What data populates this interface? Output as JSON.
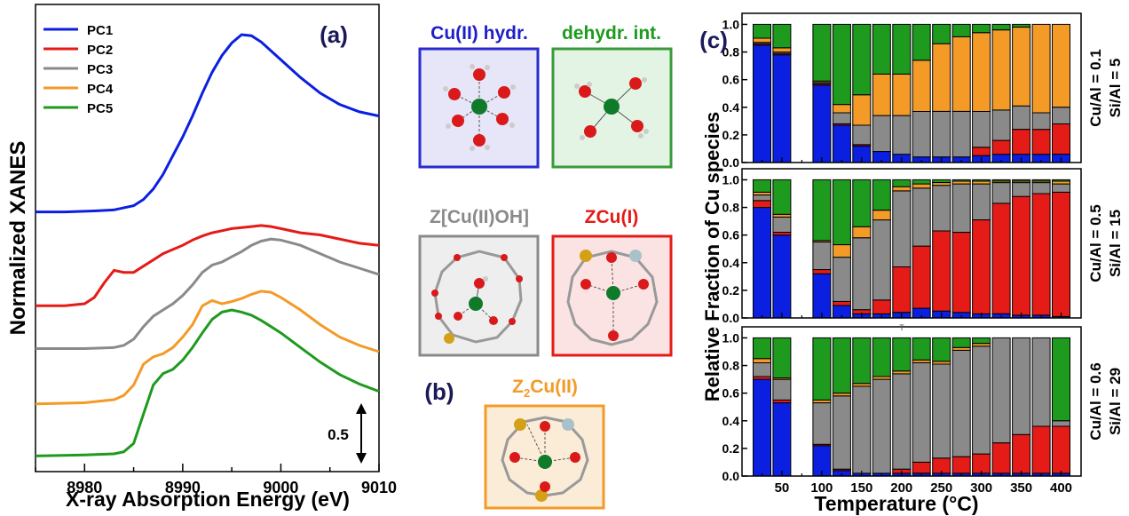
{
  "panel_a": {
    "label": "(a)",
    "ylabel": "Normalized XANES",
    "xlabel": "X-ray Absorption Energy (eV)",
    "scale_bar_label": "0.5",
    "legend": [
      "PC1",
      "PC2",
      "PC3",
      "PC4",
      "PC5"
    ]
  },
  "panel_b": {
    "label": "(b)",
    "boxes": [
      {
        "title": "Cu(II) hydr."
      },
      {
        "title": "dehydr. int."
      },
      {
        "title": "Z[Cu(II)OH]"
      },
      {
        "title": "ZCu(I)"
      },
      {
        "title_main": "Z",
        "title_sub": "2",
        "title_rest": "Cu(II)"
      }
    ]
  },
  "panel_c": {
    "label": "(c)",
    "ylabel": "Relative Fraction of Cu species",
    "xlabel": "Temperature (°C)",
    "stray_mark": "T",
    "rows": [
      {
        "line1": "Cu/Al = 0.1",
        "line2": "Si/Al = 5"
      },
      {
        "line1": "Cu/Al = 0.5",
        "line2": "Si/Al = 15"
      },
      {
        "line1": "Cu/Al = 0.6",
        "line2": "Si/Al = 29"
      }
    ]
  },
  "colors": {
    "PC1": "#0a1fe0",
    "PC2": "#e41b17",
    "PC3": "#8a8a8a",
    "PC4": "#f39a27",
    "PC5": "#1e9a1e",
    "title_cu_hydr": "#1f1fc8",
    "title_dehydr": "#1e9a1e",
    "title_cuoh": "#8a8a8a",
    "title_cui": "#e41b17",
    "title_z2": "#f39a27"
  },
  "chart_data": [
    {
      "type": "line",
      "title": "",
      "xlabel": "X-ray Absorption Energy (eV)",
      "ylabel": "Normalized XANES",
      "xlim": [
        8975,
        9010
      ],
      "xticks": [
        8980,
        8990,
        9000,
        9010
      ],
      "yticks": [],
      "legend_position": "top-left",
      "grid": false,
      "series": [
        {
          "name": "PC1",
          "color": "#0a1fe0",
          "x": [
            8975,
            8978,
            8981,
            8983,
            8985,
            8986,
            8987,
            8988,
            8989,
            8990,
            8991,
            8992,
            8993,
            8994,
            8995,
            8996,
            8997,
            8998,
            9000,
            9002,
            9004,
            9006,
            9008,
            9010
          ],
          "y": [
            3.26,
            3.26,
            3.27,
            3.28,
            3.32,
            3.38,
            3.48,
            3.62,
            3.8,
            3.98,
            4.18,
            4.4,
            4.6,
            4.76,
            4.88,
            4.96,
            4.95,
            4.89,
            4.72,
            4.55,
            4.4,
            4.29,
            4.22,
            4.18
          ]
        },
        {
          "name": "PC2",
          "color": "#e41b17",
          "x": [
            8975,
            8978,
            8980,
            8981,
            8982,
            8983,
            8984,
            8985,
            8986,
            8987,
            8988,
            8989,
            8990,
            8991,
            8992,
            8993,
            8994,
            8995,
            8996,
            8997,
            8998,
            8999,
            9000,
            9002,
            9004,
            9006,
            9008,
            9010
          ],
          "y": [
            2.36,
            2.36,
            2.38,
            2.44,
            2.58,
            2.7,
            2.68,
            2.68,
            2.74,
            2.8,
            2.86,
            2.9,
            2.94,
            2.99,
            3.03,
            3.06,
            3.08,
            3.1,
            3.11,
            3.12,
            3.13,
            3.12,
            3.1,
            3.06,
            3.04,
            3.0,
            2.96,
            2.94
          ]
        },
        {
          "name": "PC3",
          "color": "#8a8a8a",
          "x": [
            8975,
            8980,
            8983,
            8984,
            8985,
            8986,
            8987,
            8988,
            8989,
            8990,
            8991,
            8992,
            8993,
            8994,
            8995,
            8996,
            8997,
            8998,
            8999,
            9000,
            9002,
            9004,
            9006,
            9008,
            9010
          ],
          "y": [
            1.95,
            1.95,
            1.96,
            1.98,
            2.04,
            2.16,
            2.26,
            2.32,
            2.38,
            2.46,
            2.56,
            2.68,
            2.75,
            2.78,
            2.83,
            2.88,
            2.94,
            2.98,
            3.0,
            2.99,
            2.94,
            2.86,
            2.78,
            2.72,
            2.66
          ]
        },
        {
          "name": "PC4",
          "color": "#f39a27",
          "x": [
            8975,
            8980,
            8983,
            8984,
            8985,
            8986,
            8987,
            8988,
            8989,
            8990,
            8991,
            8992,
            8993,
            8994,
            8995,
            8996,
            8997,
            8998,
            8999,
            9000,
            9002,
            9004,
            9006,
            9008,
            9010
          ],
          "y": [
            1.42,
            1.43,
            1.46,
            1.5,
            1.6,
            1.8,
            1.87,
            1.9,
            1.96,
            2.06,
            2.18,
            2.36,
            2.41,
            2.38,
            2.4,
            2.43,
            2.47,
            2.5,
            2.49,
            2.44,
            2.32,
            2.18,
            2.06,
            1.98,
            1.92
          ]
        },
        {
          "name": "PC5",
          "color": "#1e9a1e",
          "x": [
            8975,
            8980,
            8983,
            8984,
            8985,
            8986,
            8987,
            8988,
            8989,
            8990,
            8991,
            8992,
            8993,
            8994,
            8995,
            8996,
            8997,
            8998,
            8999,
            9000,
            9002,
            9004,
            9006,
            9008,
            9010
          ],
          "y": [
            0.92,
            0.93,
            0.94,
            0.96,
            1.04,
            1.32,
            1.6,
            1.71,
            1.75,
            1.84,
            1.96,
            2.1,
            2.23,
            2.3,
            2.32,
            2.3,
            2.27,
            2.22,
            2.16,
            2.1,
            1.96,
            1.82,
            1.7,
            1.61,
            1.54
          ]
        }
      ]
    },
    {
      "type": "bar",
      "title": "",
      "subtitle": "Cu/Al = 0.1, Si/Al = 5",
      "xlabel": "Temperature (°C)",
      "ylabel": "Relative Fraction of Cu species",
      "ylim": [
        0,
        1.0
      ],
      "yticks": [
        "0.0",
        "0.2",
        "0.4",
        "0.6",
        "0.8",
        "1.0"
      ],
      "xticks": [
        50,
        100,
        150,
        200,
        250,
        300,
        350,
        400
      ],
      "stacked": true,
      "x": [
        25,
        50,
        100,
        125,
        150,
        175,
        200,
        225,
        250,
        275,
        300,
        325,
        350,
        375,
        400
      ],
      "series": [
        {
          "name": "PC1",
          "color": "#0a1fe0",
          "values": [
            0.85,
            0.78,
            0.56,
            0.27,
            0.12,
            0.08,
            0.06,
            0.04,
            0.04,
            0.04,
            0.05,
            0.06,
            0.06,
            0.06,
            0.06
          ]
        },
        {
          "name": "PC2",
          "color": "#e41b17",
          "values": [
            0.01,
            0.01,
            0.01,
            0.01,
            0.01,
            0.0,
            0.0,
            0.0,
            0.0,
            0.0,
            0.06,
            0.1,
            0.18,
            0.18,
            0.22
          ]
        },
        {
          "name": "PC3",
          "color": "#8a8a8a",
          "values": [
            0.01,
            0.01,
            0.01,
            0.08,
            0.14,
            0.26,
            0.28,
            0.33,
            0.33,
            0.33,
            0.26,
            0.22,
            0.17,
            0.12,
            0.12
          ]
        },
        {
          "name": "PC4",
          "color": "#f39a27",
          "values": [
            0.03,
            0.03,
            0.01,
            0.06,
            0.22,
            0.3,
            0.3,
            0.37,
            0.49,
            0.54,
            0.57,
            0.58,
            0.57,
            0.64,
            0.6
          ]
        },
        {
          "name": "PC5",
          "color": "#1e9a1e",
          "values": [
            0.1,
            0.17,
            0.41,
            0.58,
            0.51,
            0.36,
            0.36,
            0.26,
            0.14,
            0.09,
            0.06,
            0.04,
            0.02,
            0.0,
            0.0
          ]
        }
      ]
    },
    {
      "type": "bar",
      "title": "",
      "subtitle": "Cu/Al = 0.5, Si/Al = 15",
      "xlabel": "Temperature (°C)",
      "ylabel": "Relative Fraction of Cu species",
      "ylim": [
        0,
        1.0
      ],
      "yticks": [
        "0.0",
        "0.2",
        "0.4",
        "0.6",
        "0.8",
        "1.0"
      ],
      "xticks": [
        50,
        100,
        150,
        200,
        250,
        300,
        350,
        400
      ],
      "stacked": true,
      "x": [
        25,
        50,
        100,
        125,
        150,
        175,
        200,
        225,
        250,
        275,
        300,
        325,
        350,
        375,
        400
      ],
      "series": [
        {
          "name": "PC1",
          "color": "#0a1fe0",
          "values": [
            0.8,
            0.6,
            0.32,
            0.09,
            0.03,
            0.03,
            0.04,
            0.07,
            0.05,
            0.04,
            0.03,
            0.03,
            0.02,
            0.02,
            0.01
          ]
        },
        {
          "name": "PC2",
          "color": "#e41b17",
          "values": [
            0.05,
            0.02,
            0.03,
            0.03,
            0.03,
            0.1,
            0.33,
            0.45,
            0.58,
            0.58,
            0.68,
            0.8,
            0.86,
            0.88,
            0.9
          ]
        },
        {
          "name": "PC3",
          "color": "#8a8a8a",
          "values": [
            0.04,
            0.11,
            0.2,
            0.32,
            0.52,
            0.58,
            0.55,
            0.42,
            0.33,
            0.35,
            0.26,
            0.15,
            0.1,
            0.08,
            0.06
          ]
        },
        {
          "name": "PC4",
          "color": "#f39a27",
          "values": [
            0.02,
            0.02,
            0.01,
            0.09,
            0.08,
            0.07,
            0.03,
            0.03,
            0.02,
            0.02,
            0.02,
            0.01,
            0.01,
            0.01,
            0.02
          ]
        },
        {
          "name": "PC5",
          "color": "#1e9a1e",
          "values": [
            0.09,
            0.25,
            0.44,
            0.47,
            0.34,
            0.22,
            0.05,
            0.03,
            0.02,
            0.01,
            0.01,
            0.01,
            0.01,
            0.01,
            0.01
          ]
        }
      ]
    },
    {
      "type": "bar",
      "title": "",
      "subtitle": "Cu/Al = 0.6, Si/Al = 29",
      "xlabel": "Temperature (°C)",
      "ylabel": "Relative Fraction of Cu species",
      "ylim": [
        0,
        1.0
      ],
      "yticks": [
        "0.0",
        "0.2",
        "0.4",
        "0.6",
        "0.8",
        "1.0"
      ],
      "xticks": [
        50,
        100,
        150,
        200,
        250,
        300,
        350,
        400
      ],
      "stacked": true,
      "x": [
        25,
        50,
        100,
        125,
        150,
        175,
        200,
        225,
        250,
        275,
        300,
        325,
        350,
        375,
        400
      ],
      "series": [
        {
          "name": "PC1",
          "color": "#0a1fe0",
          "values": [
            0.7,
            0.53,
            0.22,
            0.04,
            0.02,
            0.02,
            0.02,
            0.02,
            0.02,
            0.02,
            0.02,
            0.02,
            0.02,
            0.02,
            0.02
          ]
        },
        {
          "name": "PC2",
          "color": "#e41b17",
          "values": [
            0.02,
            0.02,
            0.01,
            0.01,
            0.0,
            0.0,
            0.03,
            0.08,
            0.11,
            0.12,
            0.14,
            0.22,
            0.28,
            0.34,
            0.34
          ]
        },
        {
          "name": "PC3",
          "color": "#8a8a8a",
          "values": [
            0.1,
            0.15,
            0.3,
            0.53,
            0.63,
            0.68,
            0.69,
            0.72,
            0.68,
            0.77,
            0.78,
            0.76,
            0.7,
            0.64,
            0.04
          ]
        },
        {
          "name": "PC4",
          "color": "#f39a27",
          "values": [
            0.03,
            0.01,
            0.02,
            0.02,
            0.02,
            0.02,
            0.02,
            0.02,
            0.02,
            0.02,
            0.02,
            0.0,
            0.0,
            0.0,
            0.0
          ]
        },
        {
          "name": "PC5",
          "color": "#1e9a1e",
          "values": [
            0.15,
            0.29,
            0.45,
            0.4,
            0.33,
            0.28,
            0.24,
            0.16,
            0.17,
            0.07,
            0.04,
            0.0,
            0.0,
            0.0,
            0.6
          ]
        }
      ]
    }
  ]
}
